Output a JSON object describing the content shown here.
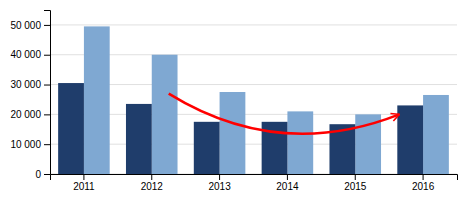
{
  "chart_data": {
    "type": "bar",
    "categories": [
      "2011",
      "2012",
      "2013",
      "2014",
      "2015",
      "2016"
    ],
    "series": [
      {
        "color": "#7fa8d2",
        "values": [
          49500,
          40000,
          27500,
          21000,
          20000,
          26500
        ]
      },
      {
        "color": "#1f3d6b",
        "values": [
          30500,
          23500,
          17500,
          17500,
          16700,
          23000
        ]
      }
    ],
    "ylim": [
      0,
      55000
    ],
    "yticks": [
      0,
      {
        "value": 10000,
        "label": "10 000"
      },
      {
        "value": 20000,
        "label": "20 000"
      },
      {
        "value": 30000,
        "label": "30 000"
      },
      {
        "value": 40000,
        "label": "40 000"
      },
      {
        "value": 50000,
        "label": "50 000"
      }
    ],
    "grid": true
  }
}
